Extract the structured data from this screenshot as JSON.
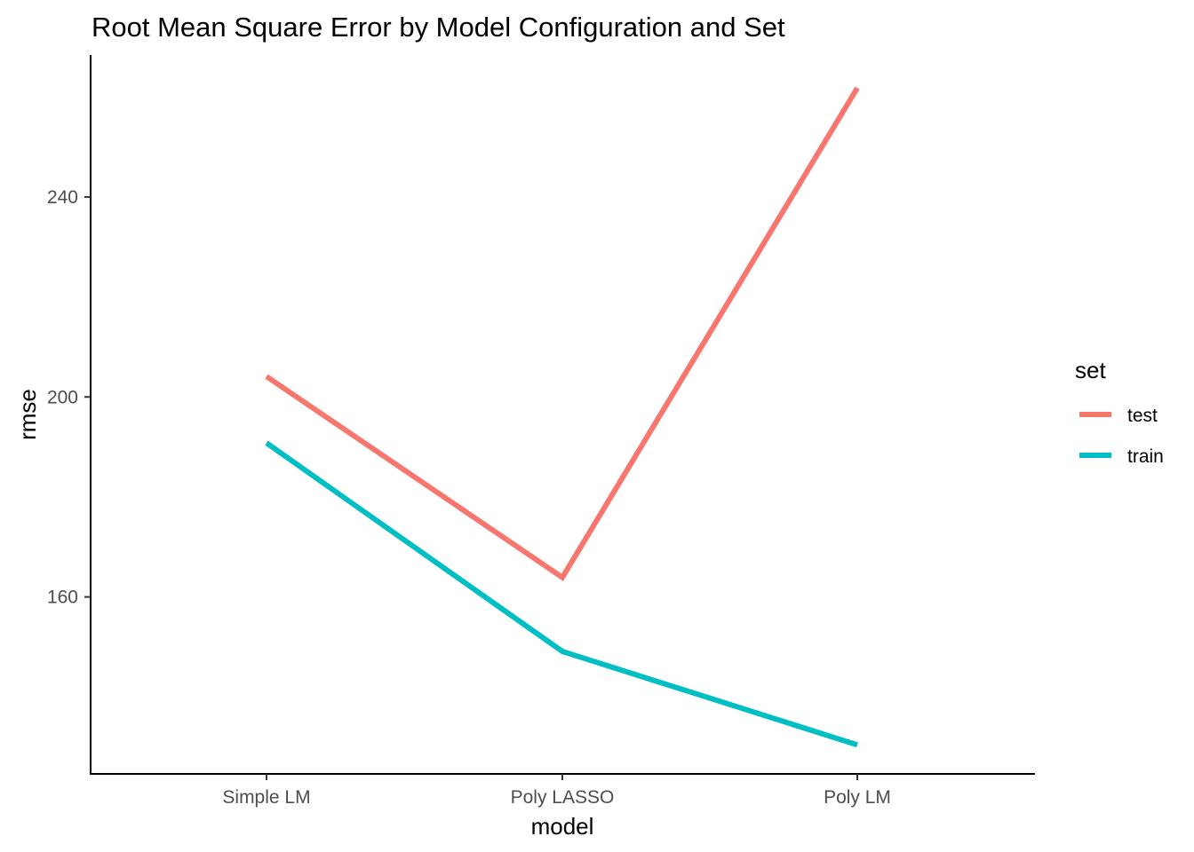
{
  "chart_data": {
    "type": "line",
    "title": "Root Mean Square Error by Model Configuration and Set",
    "xlabel": "model",
    "ylabel": "rmse",
    "categories": [
      "Simple LM",
      "Poly LASSO",
      "Poly LM"
    ],
    "ylim": [
      124.6,
      268.4
    ],
    "yticks": [
      160,
      200,
      240
    ],
    "grid": false,
    "legend": {
      "title": "set",
      "position": "right"
    },
    "series": [
      {
        "name": "test",
        "color": "#F8766D",
        "values": [
          204.1,
          163.9,
          261.8
        ]
      },
      {
        "name": "train",
        "color": "#00BFC4",
        "values": [
          190.8,
          149.1,
          130.4
        ]
      }
    ]
  }
}
